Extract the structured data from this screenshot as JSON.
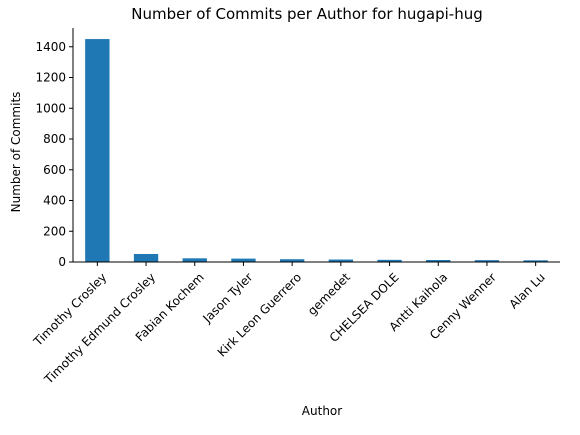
{
  "chart_data": {
    "type": "bar",
    "title": "Number of Commits per Author for hugapi-hug",
    "xlabel": "Author",
    "ylabel": "Number of Commits",
    "categories": [
      "Timothy Crosley",
      "Timothy Edmund Crosley",
      "Fabian Kochem",
      "Jason Tyler",
      "Kirk Leon Guerrero",
      "gemedet",
      "CHELSEA DOLE",
      "Antti Kaihola",
      "Cenny Wenner",
      "Alan Lu"
    ],
    "values": [
      1450,
      52,
      24,
      22,
      18,
      16,
      14,
      13,
      12,
      11
    ],
    "ylim": [
      0,
      1522
    ],
    "yticks": [
      0,
      200,
      400,
      600,
      800,
      1000,
      1200,
      1400
    ],
    "grid": false,
    "colors": {
      "bar": "#1f77b4"
    }
  }
}
